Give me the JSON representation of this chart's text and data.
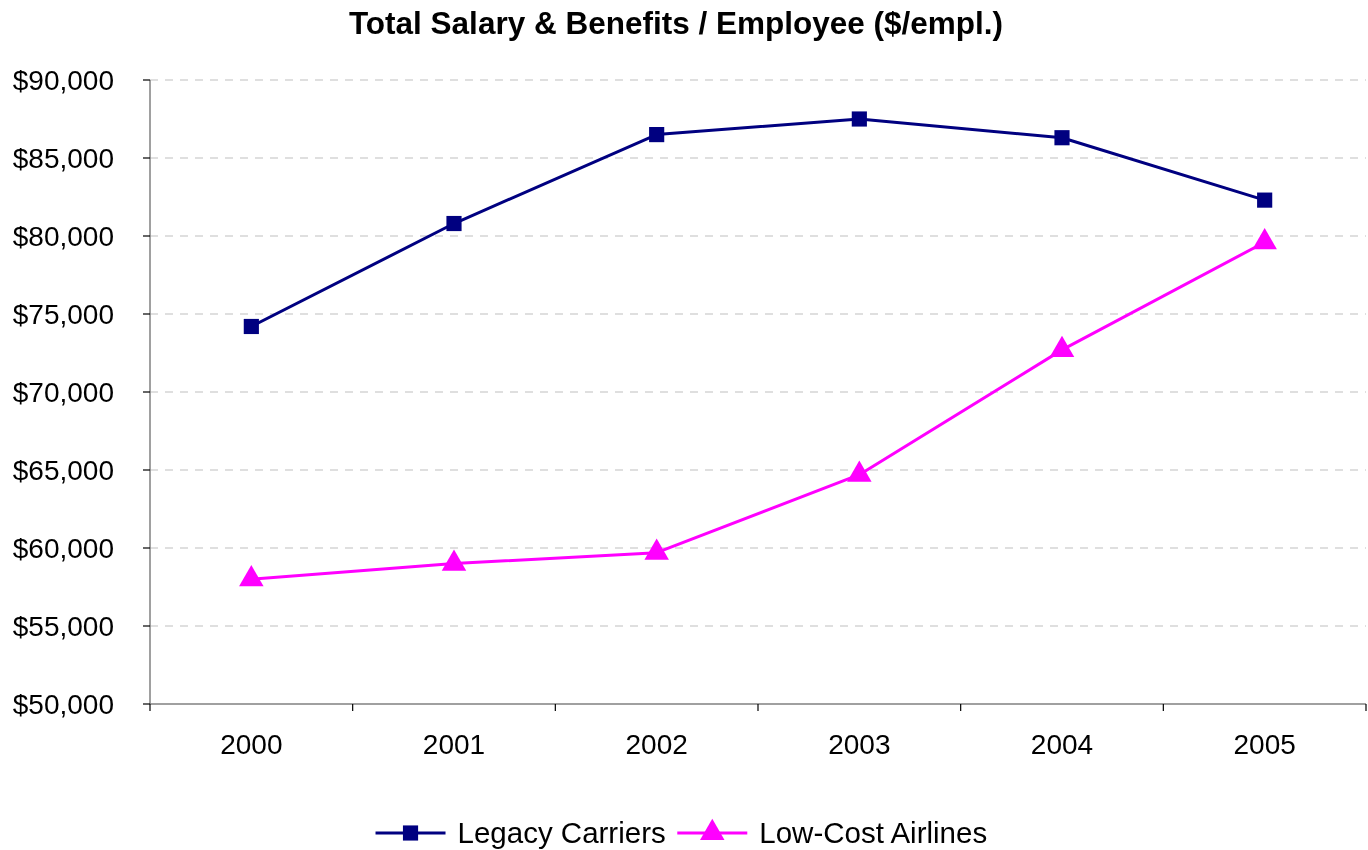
{
  "chart_data": {
    "type": "line",
    "title": "Total Salary & Benefits / Employee ($/empl.)",
    "categories": [
      "2000",
      "2001",
      "2002",
      "2003",
      "2004",
      "2005"
    ],
    "series": [
      {
        "name": "Legacy Carriers",
        "color": "#000080",
        "marker": "square",
        "values": [
          74200,
          80800,
          86500,
          87500,
          86300,
          82300
        ]
      },
      {
        "name": "Low-Cost Airlines",
        "color": "#ff00ff",
        "marker": "triangle",
        "values": [
          58000,
          59000,
          59700,
          64700,
          72700,
          79600
        ]
      }
    ],
    "ylim": [
      50000,
      90000
    ],
    "yticks": [
      {
        "value": 50000,
        "label": "$50,000"
      },
      {
        "value": 55000,
        "label": "$55,000"
      },
      {
        "value": 60000,
        "label": "$60,000"
      },
      {
        "value": 65000,
        "label": "$65,000"
      },
      {
        "value": 70000,
        "label": "$70,000"
      },
      {
        "value": 75000,
        "label": "$75,000"
      },
      {
        "value": 80000,
        "label": "$80,000"
      },
      {
        "value": 85000,
        "label": "$85,000"
      },
      {
        "value": 90000,
        "label": "$90,000"
      }
    ],
    "grid": "y",
    "legend": "bottom",
    "line_style": "solid"
  }
}
